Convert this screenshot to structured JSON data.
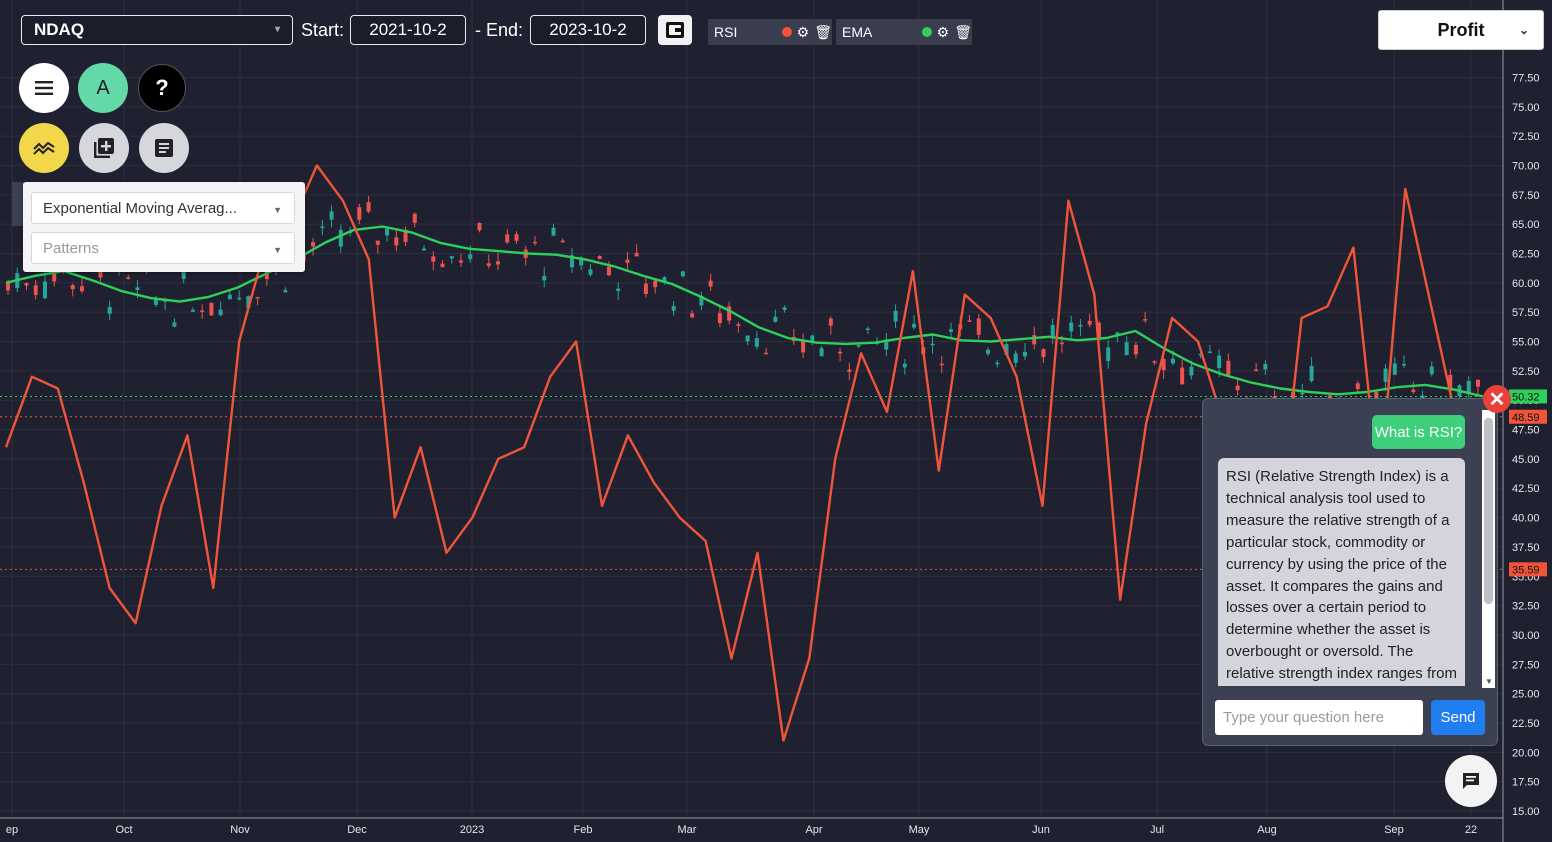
{
  "toolbar": {
    "ticker": "NDAQ",
    "start_label": "Start:",
    "start_date": "2021-10-2",
    "end_label": "- End:",
    "end_date": "2023-10-2",
    "indicators": [
      {
        "name": "RSI",
        "color": "#f0553a"
      },
      {
        "name": "EMA",
        "color": "#2fd05a"
      }
    ],
    "profit_label": "Profit"
  },
  "buttons": {
    "menu": "menu-icon",
    "account_letter": "A",
    "help": "?",
    "indicators": "trend-icon",
    "add_chart": "add-box-icon",
    "notes": "notes-icon"
  },
  "dropdowns": {
    "indicator_select": "Exponential Moving Averag...",
    "patterns_select": "Patterns"
  },
  "chat": {
    "user_message": "What is RSI?",
    "bot_message": "RSI (Relative Strength Index) is a technical analysis tool used to measure the relative strength of a particular stock, commodity or currency by using the price of the asset. It compares the gains and losses over a certain period to determine whether the asset is overbought or oversold. The relative strength index ranges from",
    "input_placeholder": "Type your question here",
    "send_label": "Send"
  },
  "colors": {
    "background": "#1f2130",
    "rsi": "#f0553a",
    "ema": "#2fd05a",
    "candle_up": "#26a69a",
    "candle_down": "#ef5350",
    "help_button": "#000000",
    "indicator_button": "#f2d64b",
    "account_button": "#62d9a6"
  },
  "chart_data": {
    "type": "line",
    "xticks": [
      "ep",
      "Oct",
      "Nov",
      "Dec",
      "2023",
      "Feb",
      "Mar",
      "Apr",
      "May",
      "Jun",
      "Jul",
      "Aug",
      "Sep",
      "22"
    ],
    "yticks": [
      "77.50",
      "75.00",
      "72.50",
      "70.00",
      "67.50",
      "65.00",
      "62.50",
      "60.00",
      "57.50",
      "55.00",
      "52.50",
      "50.00",
      "47.50",
      "45.00",
      "42.50",
      "40.00",
      "37.50",
      "35.00",
      "32.50",
      "30.00",
      "27.50",
      "25.00",
      "22.50",
      "20.00",
      "17.50",
      "15.00"
    ],
    "ylim": [
      15,
      80
    ],
    "price_labels": [
      {
        "text": "50.32",
        "value": 50.32,
        "color": "#2fd05a"
      },
      {
        "text": "48.59",
        "value": 48.59,
        "color": "#f0553a"
      },
      {
        "text": "35.59",
        "value": 35.59,
        "color": "#f0553a"
      }
    ],
    "series": [
      {
        "name": "EMA",
        "color": "#2fd05a",
        "values": [
          60.0,
          60.6,
          61.0,
          60.2,
          59.3,
          58.7,
          58.4,
          58.8,
          59.6,
          60.8,
          62.0,
          63.4,
          64.5,
          64.8,
          64.3,
          63.4,
          62.9,
          62.7,
          62.5,
          62.4,
          62.0,
          61.4,
          60.6,
          59.9,
          58.8,
          57.6,
          56.2,
          55.3,
          54.9,
          54.8,
          54.9,
          55.3,
          55.6,
          55.1,
          55.0,
          55.2,
          55.4,
          55.1,
          55.3,
          55.9,
          54.4,
          53.1,
          52.2,
          51.5,
          51.0,
          50.7,
          50.5,
          50.7,
          51.1,
          51.3,
          50.9,
          50.32
        ]
      },
      {
        "name": "RSI",
        "color": "#f0553a",
        "values": [
          46,
          52,
          51,
          43,
          34,
          31,
          41,
          47,
          34,
          55,
          63,
          65,
          70,
          67,
          62,
          40,
          46,
          37,
          40,
          45,
          46,
          52,
          55,
          41,
          47,
          43,
          40,
          38,
          28,
          37,
          21,
          28,
          45,
          54,
          49,
          61,
          44,
          59,
          57,
          52,
          41,
          67,
          59,
          33,
          48,
          57,
          55,
          48,
          34,
          37,
          57,
          58,
          63,
          42,
          68,
          58,
          48,
          47
        ]
      }
    ]
  }
}
